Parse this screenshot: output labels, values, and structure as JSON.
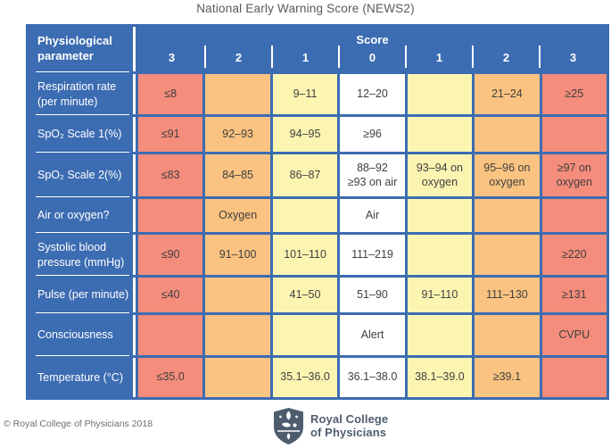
{
  "title": "National Early Warning Score (NEWS2)",
  "table": {
    "param_header": "Physiological\nparameter",
    "score_header": "Score",
    "score_columns": [
      "3",
      "2",
      "1",
      "0",
      "1",
      "2",
      "3"
    ],
    "rows": [
      {
        "label": "Respiration rate\n(per minute)",
        "cells": [
          {
            "text": "≤8",
            "tone": "red"
          },
          {
            "text": "",
            "tone": "orange"
          },
          {
            "text": "9–11",
            "tone": "yellow"
          },
          {
            "text": "12–20",
            "tone": "white"
          },
          {
            "text": "",
            "tone": "yellow"
          },
          {
            "text": "21–24",
            "tone": "orange"
          },
          {
            "text": "≥25",
            "tone": "red"
          }
        ]
      },
      {
        "label": "SpO₂ Scale 1(%)",
        "cells": [
          {
            "text": "≤91",
            "tone": "red"
          },
          {
            "text": "92–93",
            "tone": "orange"
          },
          {
            "text": "94–95",
            "tone": "yellow"
          },
          {
            "text": "≥96",
            "tone": "white"
          },
          {
            "text": "",
            "tone": "yellow"
          },
          {
            "text": "",
            "tone": "orange"
          },
          {
            "text": "",
            "tone": "red"
          }
        ]
      },
      {
        "label": "SpO₂ Scale 2(%)",
        "cells": [
          {
            "text": "≤83",
            "tone": "red"
          },
          {
            "text": "84–85",
            "tone": "orange"
          },
          {
            "text": "86–87",
            "tone": "yellow"
          },
          {
            "text": "88–92\n≥93 on air",
            "tone": "white"
          },
          {
            "text": "93–94 on\noxygen",
            "tone": "yellow"
          },
          {
            "text": "95–96 on\noxygen",
            "tone": "orange"
          },
          {
            "text": "≥97 on\noxygen",
            "tone": "red"
          }
        ]
      },
      {
        "label": "Air or oxygen?",
        "cells": [
          {
            "text": "",
            "tone": "red"
          },
          {
            "text": "Oxygen",
            "tone": "orange"
          },
          {
            "text": "",
            "tone": "yellow"
          },
          {
            "text": "Air",
            "tone": "white"
          },
          {
            "text": "",
            "tone": "yellow"
          },
          {
            "text": "",
            "tone": "orange"
          },
          {
            "text": "",
            "tone": "red"
          }
        ]
      },
      {
        "label": "Systolic blood\npressure (mmHg)",
        "cells": [
          {
            "text": "≤90",
            "tone": "red"
          },
          {
            "text": "91–100",
            "tone": "orange"
          },
          {
            "text": "101–110",
            "tone": "yellow"
          },
          {
            "text": "111–219",
            "tone": "white"
          },
          {
            "text": "",
            "tone": "yellow"
          },
          {
            "text": "",
            "tone": "orange"
          },
          {
            "text": "≥220",
            "tone": "red"
          }
        ]
      },
      {
        "label": "Pulse (per minute)",
        "cells": [
          {
            "text": "≤40",
            "tone": "red"
          },
          {
            "text": "",
            "tone": "orange"
          },
          {
            "text": "41–50",
            "tone": "yellow"
          },
          {
            "text": "51–90",
            "tone": "white"
          },
          {
            "text": "91–110",
            "tone": "yellow"
          },
          {
            "text": "111–130",
            "tone": "orange"
          },
          {
            "text": "≥131",
            "tone": "red"
          }
        ]
      },
      {
        "label": "Consciousness",
        "cells": [
          {
            "text": "",
            "tone": "red"
          },
          {
            "text": "",
            "tone": "orange"
          },
          {
            "text": "",
            "tone": "yellow"
          },
          {
            "text": "Alert",
            "tone": "white"
          },
          {
            "text": "",
            "tone": "yellow"
          },
          {
            "text": "",
            "tone": "orange"
          },
          {
            "text": "CVPU",
            "tone": "red"
          }
        ]
      },
      {
        "label": "Temperature (°C)",
        "cells": [
          {
            "text": "≤35.0",
            "tone": "red"
          },
          {
            "text": "",
            "tone": "orange"
          },
          {
            "text": "35.1–36.0",
            "tone": "yellow"
          },
          {
            "text": "36.1–38.0",
            "tone": "white"
          },
          {
            "text": "38.1–39.0",
            "tone": "yellow"
          },
          {
            "text": "≥39.1",
            "tone": "orange"
          },
          {
            "text": "",
            "tone": "red"
          }
        ]
      }
    ]
  },
  "footer": {
    "copyright": "© Royal College of Physicians 2018",
    "logo_line1": "Royal College",
    "logo_line2": "of Physicians"
  },
  "colors": {
    "table_blue": "#3C6CB2",
    "red": "#F58D7C",
    "orange": "#FAC381",
    "yellow": "#FCF5B2",
    "white": "#FFFFFF",
    "title_text": "#58595B",
    "cell_text": "#3F3F3F",
    "copyright_text": "#6D6E70",
    "logo_text": "#4E5D6E"
  }
}
